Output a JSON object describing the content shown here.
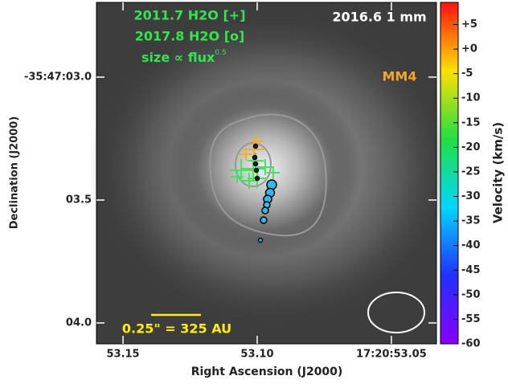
{
  "chart_data": {
    "type": "scatter",
    "annotations": {
      "epoch_crosses": "2011.7 H2O [+]",
      "epoch_circles": "2017.8 H2O [o]",
      "size_note": "size ∝ flux",
      "size_exponent": "0.5",
      "image_label": "2016.6 1 mm",
      "source": "MM4",
      "scale_bar": "0.25\" = 325 AU"
    },
    "x_label": "Right Ascension (J2000)",
    "y_label": "Declination (J2000)",
    "colorbar_label": "Velocity (km/s)",
    "xlim": [
      53.1599,
      53.0332
    ],
    "xticks": [
      {
        "value": 53.15,
        "label": "53.15"
      },
      {
        "value": 53.1,
        "label": "53.10"
      },
      {
        "value": 53.05,
        "label": "17:20:53.05"
      }
    ],
    "ylim": [
      4.085,
      2.696
    ],
    "yticks": [
      {
        "value": 3.0,
        "label": "-35:47:03.0"
      },
      {
        "value": 3.5,
        "label": "03.5"
      },
      {
        "value": 4.0,
        "label": "04.0"
      }
    ],
    "clim": [
      -60,
      9.5
    ],
    "cticks": [
      {
        "value": 5,
        "label": "+5"
      },
      {
        "value": 0,
        "label": "+0"
      },
      -5,
      -10,
      -15,
      -20,
      -25,
      -30,
      -35,
      -40,
      -45,
      -50,
      -55,
      -60
    ],
    "series": [
      {
        "marker": "+",
        "color": "#f5b021",
        "x": [
          53.1012,
          53.1,
          53.10419
        ],
        "y": [
          3.2941,
          3.2614,
          3.3137
        ],
        "size": [
          14,
          8,
          8
        ]
      },
      {
        "marker": "+",
        "color": "#3ee85a",
        "x": [
          53.10599,
          53.1015,
          53.09701,
          53.1,
          53.10749,
          53.10299,
          53.09401,
          53.1006
        ],
        "y": [
          3.3791,
          3.3725,
          3.366,
          3.4118,
          3.4052,
          3.4216,
          3.3889,
          3.3399
        ],
        "size": [
          14,
          16,
          10,
          12,
          8,
          10,
          8,
          10
        ]
      },
      {
        "marker": "o",
        "color": "#222222",
        "x": [
          53.1006,
          53.1009,
          53.1006,
          53.1003,
          53.1
        ],
        "y": [
          3.281,
          3.3268,
          3.3529,
          3.3791,
          3.4118
        ],
        "size": [
          2.5,
          2.5,
          2.5,
          2.5,
          2.5
        ]
      },
      {
        "marker": "o",
        "color": "#2bbcf0",
        "x": [
          53.09461,
          53.09521,
          53.09611,
          53.09641,
          53.09701,
          53.0976,
          53.0988
        ],
        "y": [
          3.4379,
          3.4706,
          3.4967,
          3.5196,
          3.5425,
          3.5817,
          3.6634
        ],
        "size": [
          6,
          5.5,
          5,
          4,
          4,
          4,
          2.5
        ]
      }
    ]
  }
}
